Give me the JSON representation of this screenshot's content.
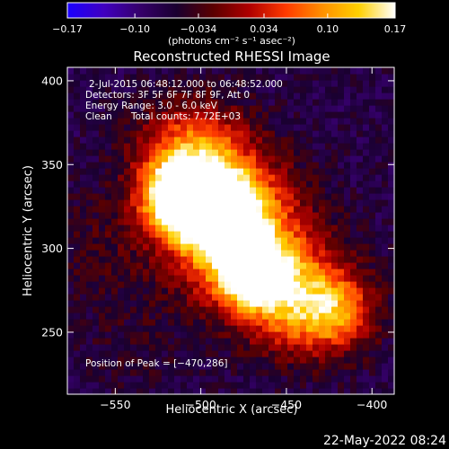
{
  "chart_data": {
    "type": "heatmap",
    "title": "Reconstructed RHESSI Image",
    "xlabel": "Heliocentric X (arcsec)",
    "ylabel": "Heliocentric Y (arcsec)",
    "xlim": [
      -578,
      -387
    ],
    "ylim": [
      213,
      408
    ],
    "x_ticks": [
      -550,
      -500,
      -450,
      -400
    ],
    "y_ticks": [
      250,
      300,
      350,
      400
    ],
    "x_tick_labels": [
      "−550",
      "−500",
      "−450",
      "−400"
    ],
    "y_tick_labels": [
      "250",
      "300",
      "350",
      "400"
    ],
    "colorbar": {
      "range": [
        -0.17,
        0.17
      ],
      "tick_values": [
        -0.17,
        -0.1,
        -0.034,
        0.034,
        0.1,
        0.17
      ],
      "tick_labels": [
        "−0.17",
        "−0.10",
        "−0.034",
        "0.034",
        "0.10",
        "0.17"
      ],
      "unit_label": "(photons cm⁻² s⁻¹ asec⁻²)"
    },
    "annotations": {
      "time": "2-Jul-2015 06:48:12.000 to 06:48:52.000",
      "detectors": "Detectors: 3F 5F 6F 7F 8F 9F, Att 0",
      "energy": "Energy Range: 3.0 - 6.0 keV",
      "clean": "Clean",
      "counts": "Total counts: 7.72E+03",
      "peak": "Position of Peak = [−470,286]"
    },
    "peak_position": [
      -470,
      286
    ],
    "sources": [
      {
        "x": -470,
        "y": 286,
        "peak": 0.17,
        "sigma": 13
      },
      {
        "x": -490,
        "y": 322,
        "peak": 0.15,
        "sigma": 17
      },
      {
        "x": -515,
        "y": 330,
        "peak": 0.13,
        "sigma": 14
      },
      {
        "x": -480,
        "y": 310,
        "peak": 0.12,
        "sigma": 28
      },
      {
        "x": -505,
        "y": 355,
        "peak": 0.09,
        "sigma": 22
      },
      {
        "x": -445,
        "y": 270,
        "peak": 0.09,
        "sigma": 22
      },
      {
        "x": -420,
        "y": 262,
        "peak": 0.05,
        "sigma": 16
      },
      {
        "x": -540,
        "y": 240,
        "peak": -0.05,
        "sigma": 22
      },
      {
        "x": -565,
        "y": 300,
        "peak": -0.04,
        "sigma": 25
      }
    ],
    "colors": {
      "scale": [
        "#1b00ff",
        "#4000c0",
        "#35006a",
        "#1a0030",
        "#5a0000",
        "#b00000",
        "#ff3a00",
        "#ff9000",
        "#ffd000",
        "#ffffff"
      ],
      "axes": "#ffffff",
      "background": "#000000"
    }
  },
  "footer": {
    "date": "22-May-2022 08:24"
  }
}
